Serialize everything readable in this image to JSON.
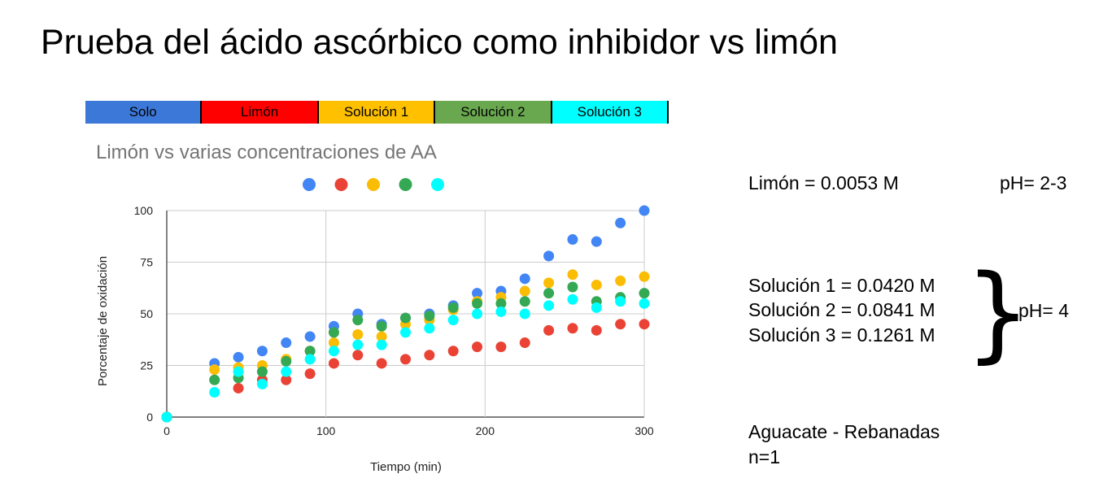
{
  "slide": {
    "title": "Prueba del ácido ascórbico como inhibidor vs limón"
  },
  "legend_bar": [
    {
      "label": "Solo",
      "color": "#3c78d8"
    },
    {
      "label": "Limón",
      "color": "#ff0000"
    },
    {
      "label": "Solución 1",
      "color": "#ffc000"
    },
    {
      "label": "Solución 2",
      "color": "#6aa84f"
    },
    {
      "label": "Solución 3",
      "color": "#00ffff"
    }
  ],
  "chart_data": {
    "type": "scatter",
    "title": "Limón vs varias concentraciones de AA",
    "xlabel": "Tiempo (min)",
    "ylabel": "Porcentaje de oxidación",
    "xlim": [
      0,
      300
    ],
    "ylim": [
      0,
      100
    ],
    "xticks": [
      0,
      100,
      200,
      300
    ],
    "yticks": [
      0,
      25,
      50,
      75,
      100
    ],
    "grid": true,
    "legend": "top",
    "series": [
      {
        "color": "#4285f4",
        "points": [
          [
            0,
            0
          ],
          [
            30,
            26
          ],
          [
            45,
            29
          ],
          [
            60,
            32
          ],
          [
            75,
            36
          ],
          [
            90,
            39
          ],
          [
            105,
            44
          ],
          [
            120,
            50
          ],
          [
            135,
            45
          ],
          [
            150,
            48
          ],
          [
            165,
            50
          ],
          [
            180,
            54
          ],
          [
            195,
            60
          ],
          [
            210,
            61
          ],
          [
            225,
            67
          ],
          [
            240,
            78
          ],
          [
            255,
            86
          ],
          [
            270,
            85
          ],
          [
            285,
            94
          ],
          [
            300,
            100
          ]
        ]
      },
      {
        "color": "#ea4335",
        "points": [
          [
            0,
            0
          ],
          [
            45,
            14
          ],
          [
            60,
            18
          ],
          [
            75,
            18
          ],
          [
            90,
            21
          ],
          [
            105,
            26
          ],
          [
            120,
            30
          ],
          [
            135,
            26
          ],
          [
            150,
            28
          ],
          [
            165,
            30
          ],
          [
            180,
            32
          ],
          [
            195,
            34
          ],
          [
            210,
            34
          ],
          [
            225,
            36
          ],
          [
            240,
            42
          ],
          [
            255,
            43
          ],
          [
            270,
            42
          ],
          [
            285,
            45
          ],
          [
            300,
            45
          ]
        ]
      },
      {
        "color": "#fbbc04",
        "points": [
          [
            0,
            0
          ],
          [
            30,
            23
          ],
          [
            45,
            24
          ],
          [
            60,
            25
          ],
          [
            75,
            28
          ],
          [
            90,
            32
          ],
          [
            105,
            36
          ],
          [
            120,
            40
          ],
          [
            135,
            39
          ],
          [
            150,
            45
          ],
          [
            165,
            47
          ],
          [
            180,
            52
          ],
          [
            195,
            56
          ],
          [
            210,
            58
          ],
          [
            225,
            61
          ],
          [
            240,
            65
          ],
          [
            255,
            69
          ],
          [
            270,
            64
          ],
          [
            285,
            66
          ],
          [
            300,
            68
          ]
        ]
      },
      {
        "color": "#34a853",
        "points": [
          [
            0,
            0
          ],
          [
            30,
            18
          ],
          [
            45,
            19
          ],
          [
            60,
            22
          ],
          [
            75,
            27
          ],
          [
            90,
            32
          ],
          [
            105,
            41
          ],
          [
            120,
            47
          ],
          [
            135,
            44
          ],
          [
            150,
            48
          ],
          [
            165,
            49
          ],
          [
            180,
            53
          ],
          [
            195,
            55
          ],
          [
            210,
            55
          ],
          [
            225,
            56
          ],
          [
            240,
            60
          ],
          [
            255,
            63
          ],
          [
            270,
            56
          ],
          [
            285,
            58
          ],
          [
            300,
            60
          ]
        ]
      },
      {
        "color": "#00ffff",
        "points": [
          [
            0,
            0
          ],
          [
            30,
            12
          ],
          [
            45,
            22
          ],
          [
            60,
            16
          ],
          [
            75,
            22
          ],
          [
            90,
            28
          ],
          [
            105,
            32
          ],
          [
            120,
            35
          ],
          [
            135,
            35
          ],
          [
            150,
            41
          ],
          [
            165,
            43
          ],
          [
            180,
            47
          ],
          [
            195,
            50
          ],
          [
            210,
            51
          ],
          [
            225,
            50
          ],
          [
            240,
            54
          ],
          [
            255,
            57
          ],
          [
            270,
            53
          ],
          [
            285,
            56
          ],
          [
            300,
            55
          ]
        ]
      }
    ]
  },
  "info": {
    "limon": "Limón = 0.0053 M",
    "ph_limon": "pH= 2-3",
    "sol1": "Solución 1 = 0.0420 M",
    "sol2": "Solución 2 = 0.0841 M",
    "sol3": "Solución 3 = 0.1261 M",
    "brace": "}",
    "ph_sol": "pH= 4",
    "sample": "Aguacate - Rebanadas",
    "n": "n=1"
  }
}
